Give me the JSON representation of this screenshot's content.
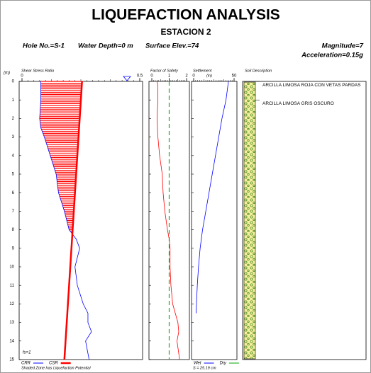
{
  "header": {
    "title": "LIQUEFACTION ANALYSIS",
    "subtitle": "ESTACION 2",
    "hole": "Hole No.=S-1",
    "water": "Water Depth=0 m",
    "elevation": "Surface Elev.=74",
    "magnitude": "Magnitude=7",
    "acceleration": "Acceleration=0.15g"
  },
  "depth_axis": {
    "label": "(m)",
    "ylim": [
      0,
      15
    ],
    "yticks": [
      0,
      1,
      2,
      3,
      4,
      5,
      6,
      7,
      8,
      9,
      10,
      11,
      12,
      13,
      14,
      15
    ]
  },
  "chart_data": [
    {
      "type": "line",
      "title": "Shear Stress Ratio",
      "xlim": [
        0,
        0.5
      ],
      "xticks": [
        0,
        0.5
      ],
      "series": [
        {
          "name": "CRR",
          "color": "#0000ff",
          "y": [
            0,
            1,
            2,
            2.5,
            3,
            4,
            5,
            6,
            7,
            8,
            8.5,
            9,
            9.5,
            10,
            11,
            12,
            12.5,
            13,
            13.5,
            14,
            15
          ],
          "x": [
            0.08,
            0.08,
            0.075,
            0.08,
            0.095,
            0.12,
            0.145,
            0.155,
            0.18,
            0.2,
            0.23,
            0.245,
            0.235,
            0.225,
            0.235,
            0.26,
            0.28,
            0.28,
            0.295,
            0.27,
            0.285
          ]
        },
        {
          "name": "CSR",
          "color": "#ff0000",
          "y": [
            0,
            15
          ],
          "x": [
            0.255,
            0.18
          ]
        }
      ],
      "annotation": "fs=1",
      "note": "Shaded Zone has Liquefaction Potential"
    },
    {
      "type": "line",
      "title": "Factor of Safety",
      "xlim": [
        0,
        2
      ],
      "xticks": [
        0,
        1,
        2
      ],
      "reference": {
        "value": 1,
        "color": "#22aa22"
      },
      "series": [
        {
          "color": "#ff0000",
          "y": [
            0,
            0.2,
            1,
            2,
            3,
            4,
            5,
            6,
            7,
            8,
            8.5,
            9,
            10,
            11,
            12,
            13,
            13.5,
            14,
            15
          ],
          "x": [
            0.3,
            0.35,
            0.35,
            0.3,
            0.35,
            0.45,
            0.6,
            0.65,
            0.75,
            0.9,
            1.0,
            1.05,
            1.05,
            1.1,
            1.2,
            1.5,
            1.55,
            1.45,
            1.6
          ]
        }
      ]
    },
    {
      "type": "line",
      "title": "Settlement",
      "unit": "(in)",
      "xlim": [
        0,
        50
      ],
      "xticks": [
        0,
        50
      ],
      "series": [
        {
          "name": "Wet",
          "color": "#0000ff",
          "y": [
            0,
            1,
            2,
            3,
            4,
            5,
            6,
            7,
            8,
            9,
            10,
            11,
            12,
            12.5
          ],
          "x": [
            43,
            40,
            35,
            31,
            27,
            23,
            19,
            15,
            11,
            8,
            6,
            4.5,
            3.5,
            3
          ]
        },
        {
          "name": "Dry",
          "color": "#00aa00",
          "y": [],
          "x": []
        }
      ],
      "total": "S = 25.19 cm"
    }
  ],
  "soil": {
    "title": "Soil Description",
    "layers": [
      {
        "depth": 0,
        "label": "ARCILLA LIMOSA ROJA CON VETAS PARDAS"
      },
      {
        "depth": 1,
        "label": "ARCILLA LIMOSA GRIS OSCURO"
      }
    ]
  }
}
